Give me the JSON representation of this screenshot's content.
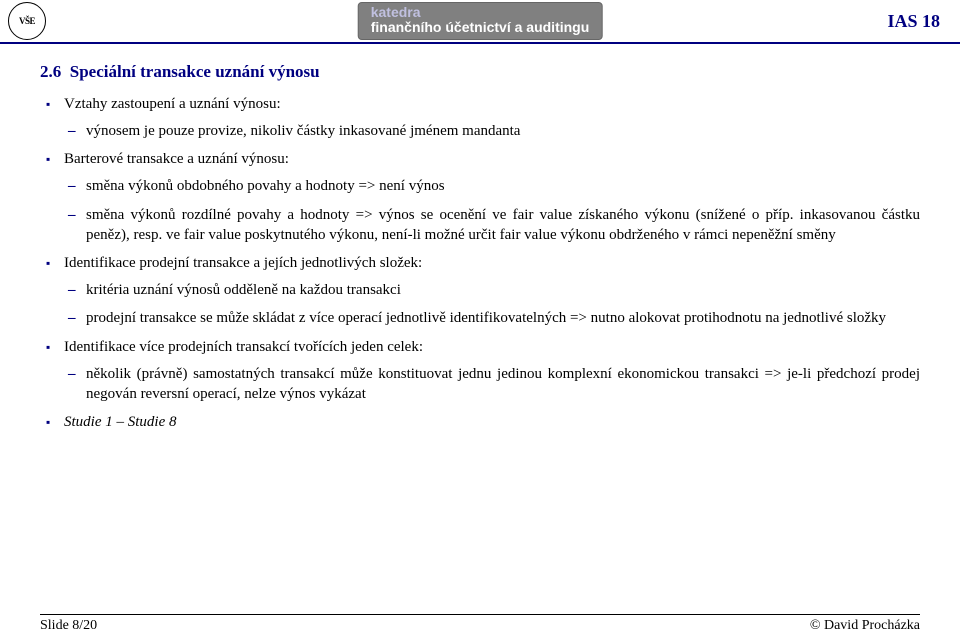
{
  "header": {
    "logo_text": "VŠE",
    "dept_line1": "katedra",
    "dept_line2": "finančního účetnictví a auditingu",
    "ias_label": "IAS 18"
  },
  "section": {
    "number": "2.6",
    "title": "Speciální transakce uznání výnosu"
  },
  "items": [
    {
      "text": "Vztahy zastoupení a uznání výnosu:",
      "sub": [
        {
          "text": "výnosem je pouze provize, nikoliv částky inkasované jménem mandanta"
        }
      ]
    },
    {
      "text": "Barterové transakce a uznání výnosu:",
      "sub": [
        {
          "text": "směna výkonů obdobného povahy a hodnoty => není výnos"
        },
        {
          "text": "směna výkonů rozdílné povahy a hodnoty => výnos se ocenění ve fair value získaného výkonu (snížené o příp. inkasovanou částku peněz), resp. ve fair value poskytnutého výkonu, není-li možné určit fair value výkonu obdrženého v rámci nepeněžní směny"
        }
      ]
    },
    {
      "text": "Identifikace prodejní transakce a jejích jednotlivých složek:",
      "sub": [
        {
          "text": "kritéria uznání výnosů odděleně na každou transakci"
        },
        {
          "text": "prodejní transakce se může skládat z více operací jednotlivě identifikovatelných => nutno alokovat protihodnotu na jednotlivé složky"
        }
      ]
    },
    {
      "text": "Identifikace více prodejních transakcí tvořících jeden celek:",
      "sub": [
        {
          "text": "několik (právně) samostatných transakcí může konstituovat jednu jedinou komplexní ekonomickou transakci => je-li předchozí prodej negován reversní operací, nelze výnos vykázat"
        }
      ]
    },
    {
      "text": "Studie 1 – Studie 8",
      "italic": true,
      "sub": []
    }
  ],
  "footer": {
    "slide": "Slide 8/20",
    "author": "© David Procházka"
  }
}
